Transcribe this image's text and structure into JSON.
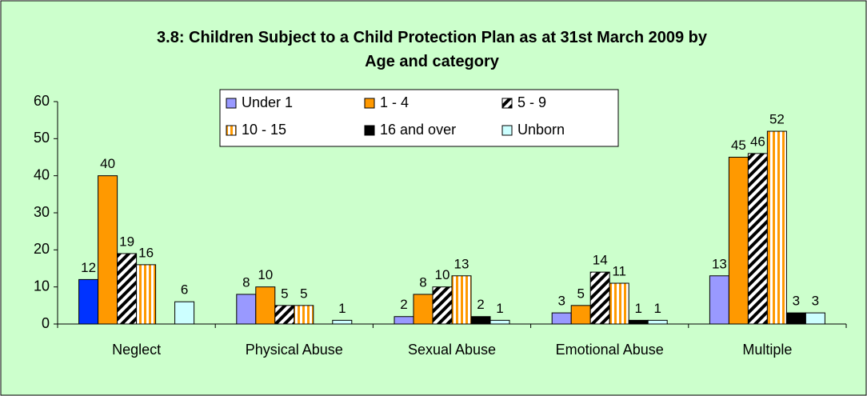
{
  "chart_data": {
    "type": "bar",
    "title": "3.8: Children Subject to a Child Protection Plan as at 31st March 2009 by Age and category",
    "categories": [
      "Neglect",
      "Physical Abuse",
      "Sexual Abuse",
      "Emotional Abuse",
      "Multiple"
    ],
    "series": [
      {
        "name": "Under 1",
        "color": "#9999ff",
        "point_colors": [
          "#0033ff",
          "#9999ff",
          "#9999ff",
          "#9999ff",
          "#9999ff"
        ],
        "values": [
          12,
          8,
          2,
          3,
          13
        ]
      },
      {
        "name": "1 - 4",
        "color": "#ff9900",
        "values": [
          40,
          10,
          8,
          5,
          45
        ]
      },
      {
        "name": "5 - 9",
        "color": "#000000",
        "pattern": "diagonal",
        "values": [
          19,
          5,
          10,
          14,
          46
        ]
      },
      {
        "name": "10 - 15",
        "color": "#ff9900",
        "pattern": "vertical",
        "values": [
          16,
          5,
          13,
          11,
          52
        ]
      },
      {
        "name": "16 and over",
        "color": "#000000",
        "values": [
          null,
          null,
          2,
          1,
          3
        ]
      },
      {
        "name": "Unborn",
        "color": "#ccffff",
        "values": [
          6,
          1,
          1,
          1,
          3
        ]
      }
    ],
    "ylim": [
      0,
      60
    ],
    "yticks": [
      0,
      10,
      20,
      30,
      40,
      50,
      60
    ],
    "grid": false,
    "legend": "top"
  }
}
